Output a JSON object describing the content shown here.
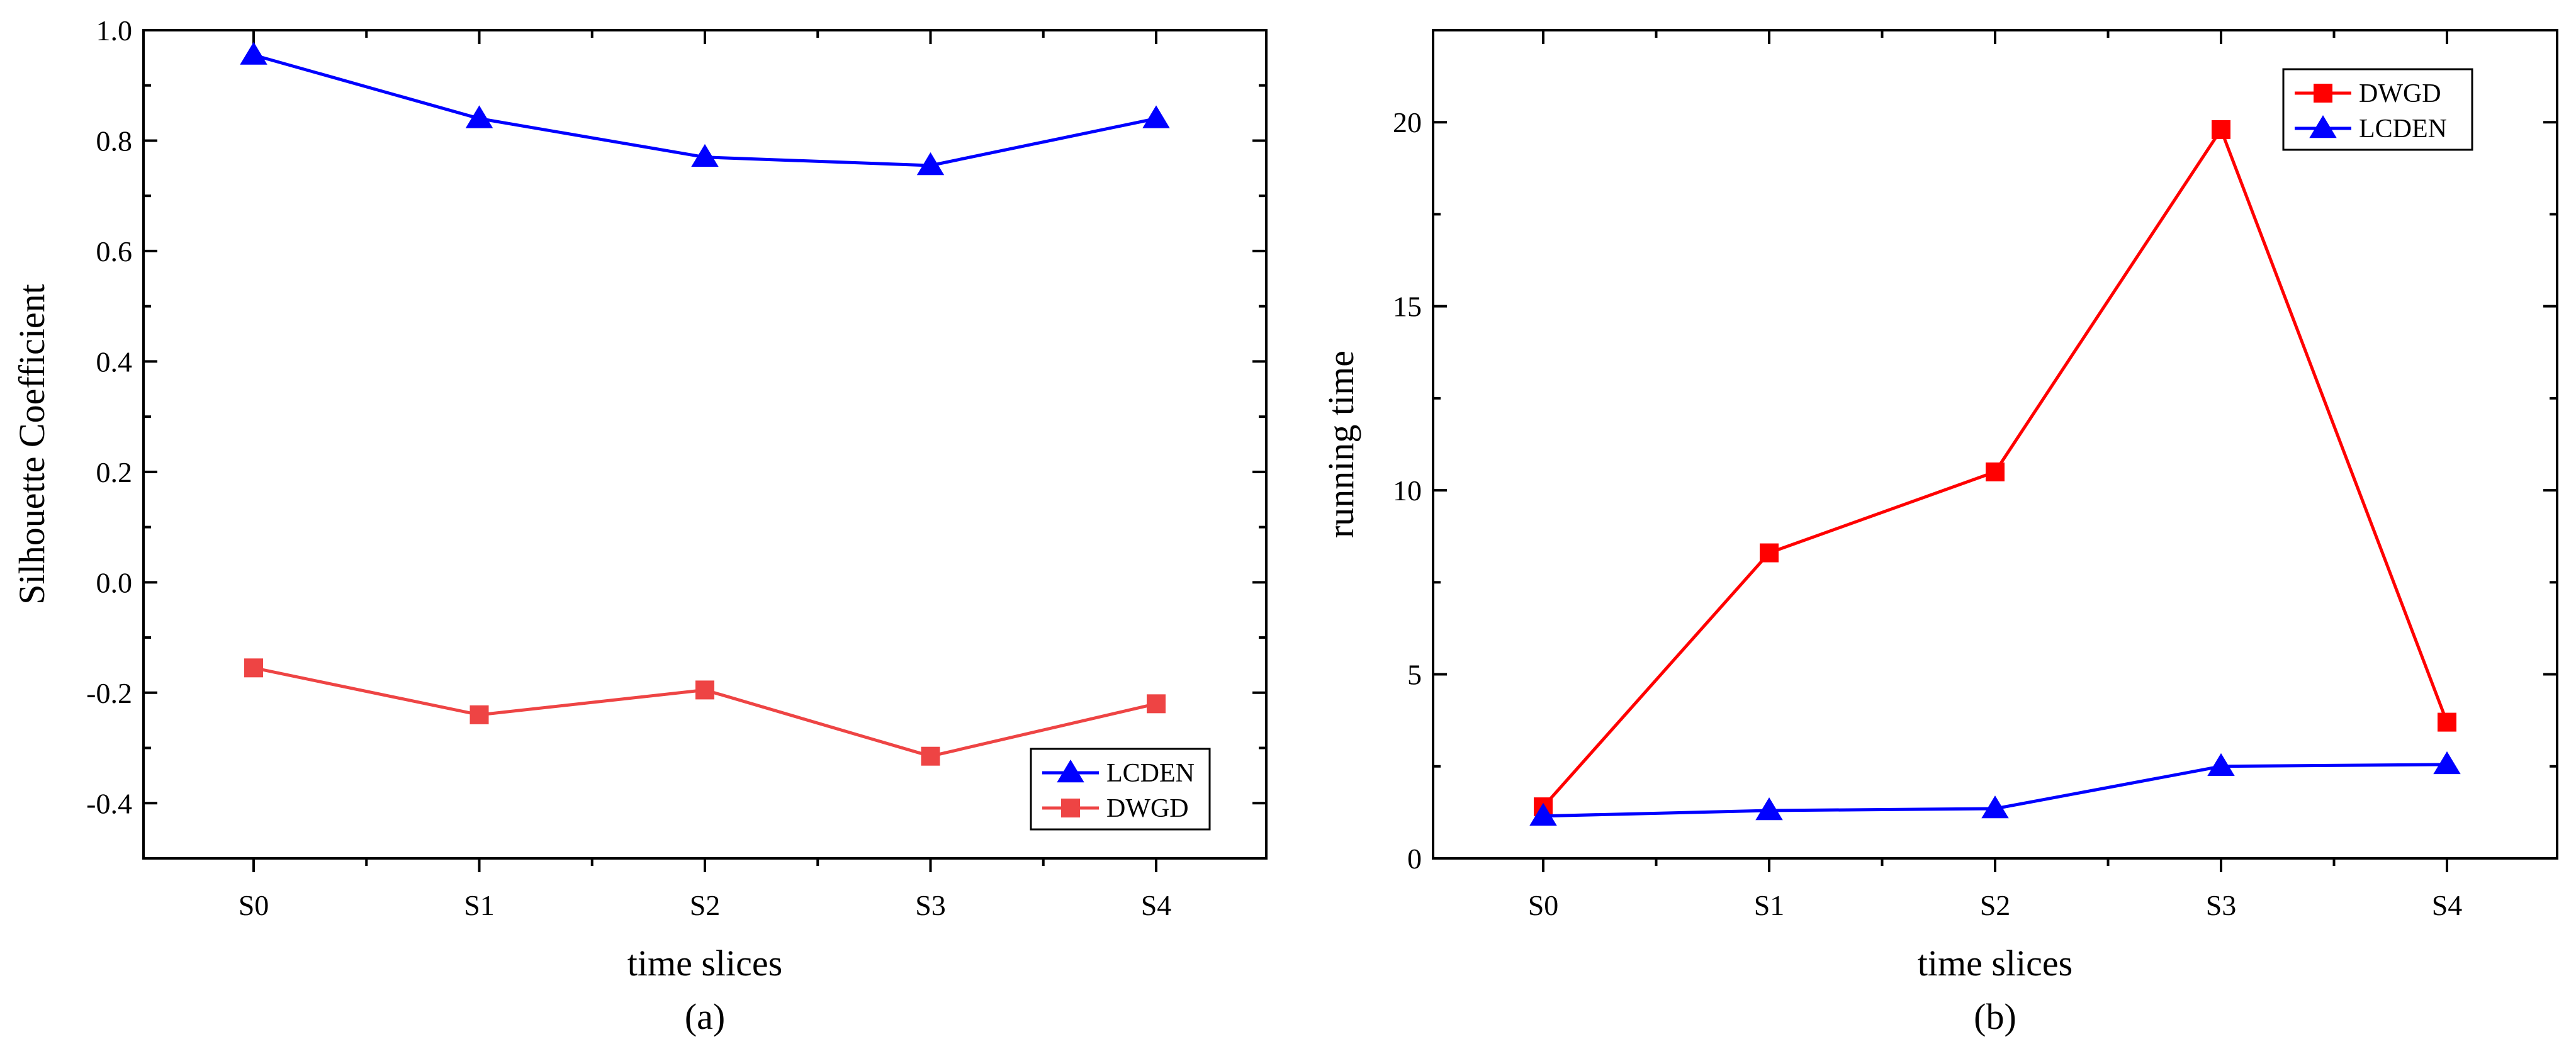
{
  "chart_data": [
    {
      "type": "line",
      "panel_label": "(a)",
      "title": "",
      "xlabel": "time slices",
      "ylabel": "Silhouette Coefficient",
      "categories": [
        "S0",
        "S1",
        "S2",
        "S3",
        "S4"
      ],
      "ylim": [
        -0.5,
        1.0
      ],
      "yticks": [
        -0.4,
        -0.2,
        0.0,
        0.2,
        0.4,
        0.6,
        0.8,
        1.0
      ],
      "ytick_labels": [
        "-0.4",
        "-0.2",
        "0.0",
        "0.2",
        "0.4",
        "0.6",
        "0.8",
        "1.0"
      ],
      "grid": false,
      "legend_position": "bottom-right",
      "series": [
        {
          "name": "LCDEN",
          "color": "#0000ff",
          "marker": "triangle",
          "values": [
            0.955,
            0.84,
            0.77,
            0.755,
            0.84
          ]
        },
        {
          "name": "DWGD",
          "color": "#ee4444",
          "marker": "square",
          "values": [
            -0.155,
            -0.24,
            -0.195,
            -0.315,
            -0.22
          ]
        }
      ]
    },
    {
      "type": "line",
      "panel_label": "(b)",
      "title": "",
      "xlabel": "time slices",
      "ylabel": "running time",
      "categories": [
        "S0",
        "S1",
        "S2",
        "S3",
        "S4"
      ],
      "ylim": [
        0,
        22.5
      ],
      "yticks": [
        0,
        5,
        10,
        15,
        20
      ],
      "ytick_labels": [
        "0",
        "5",
        "10",
        "15",
        "20"
      ],
      "grid": false,
      "legend_position": "top-right",
      "series": [
        {
          "name": "DWGD",
          "color": "#ff0000",
          "marker": "square",
          "values": [
            1.4,
            8.3,
            10.5,
            19.8,
            3.7
          ]
        },
        {
          "name": "LCDEN",
          "color": "#0000ff",
          "marker": "triangle",
          "values": [
            1.15,
            1.3,
            1.35,
            2.5,
            2.55
          ]
        }
      ]
    }
  ]
}
